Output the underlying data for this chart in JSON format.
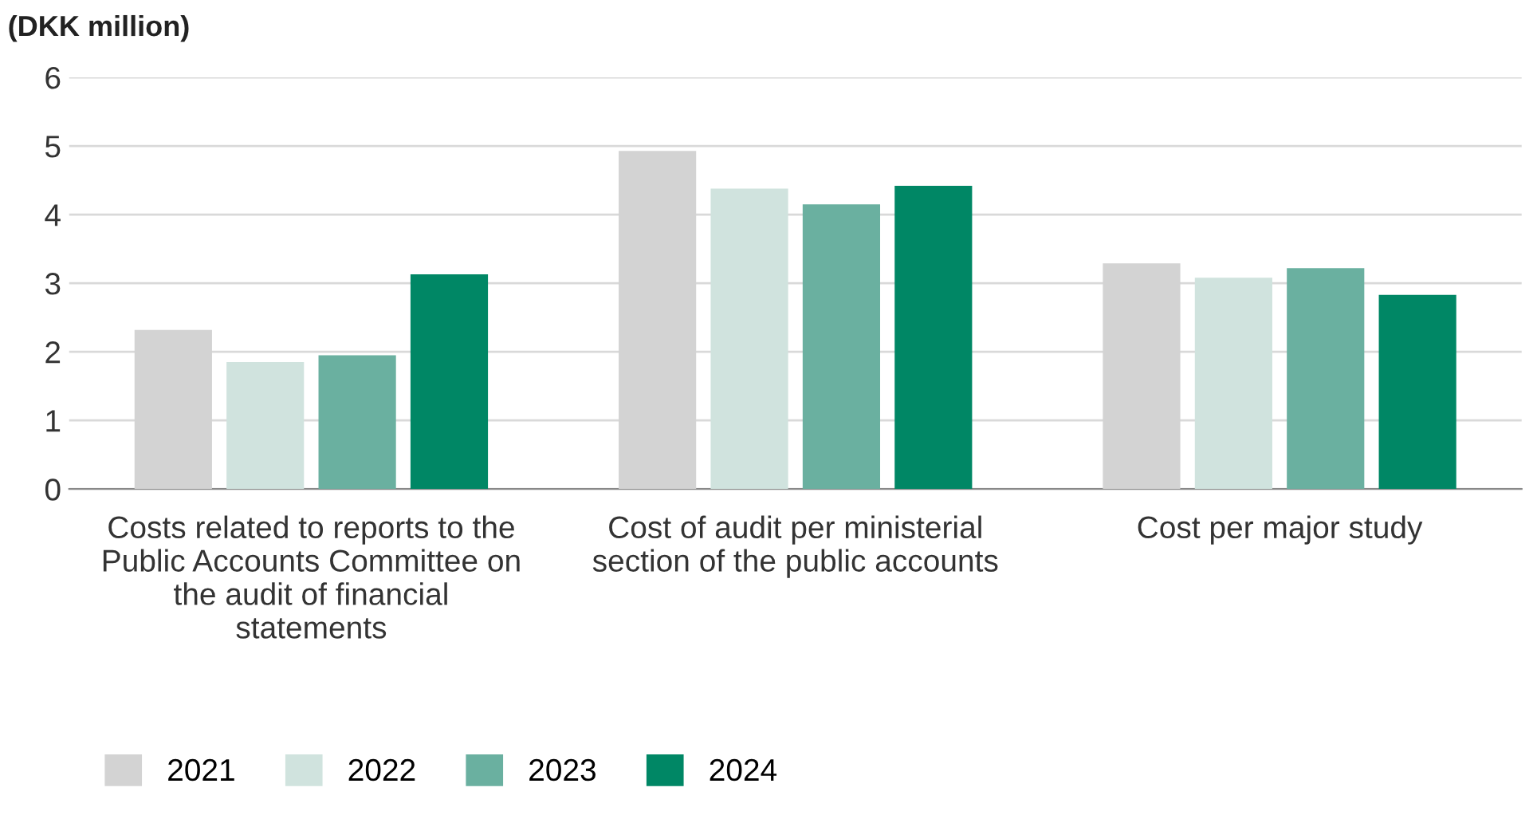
{
  "chart_data": {
    "type": "bar",
    "ylabel": "(DKK million)",
    "categories": [
      "Costs related to reports to the\nPublic Accounts Committee on\nthe audit of financial\nstatements",
      "Cost of audit per ministerial\nsection of the public accounts",
      "Cost per major study"
    ],
    "series": [
      {
        "name": "2021",
        "color": "#d3d3d3",
        "values": [
          2.32,
          4.93,
          3.29
        ]
      },
      {
        "name": "2022",
        "color": "#d0e3de",
        "values": [
          1.85,
          4.38,
          3.08
        ]
      },
      {
        "name": "2023",
        "color": "#6ab0a0",
        "values": [
          1.95,
          4.15,
          3.22
        ]
      },
      {
        "name": "2024",
        "color": "#008765",
        "values": [
          3.13,
          4.42,
          2.83
        ]
      }
    ],
    "ylim": [
      0,
      6
    ],
    "yticks": [
      0,
      1,
      2,
      3,
      4,
      5,
      6
    ],
    "grid": "y",
    "legend": "bottom left"
  }
}
